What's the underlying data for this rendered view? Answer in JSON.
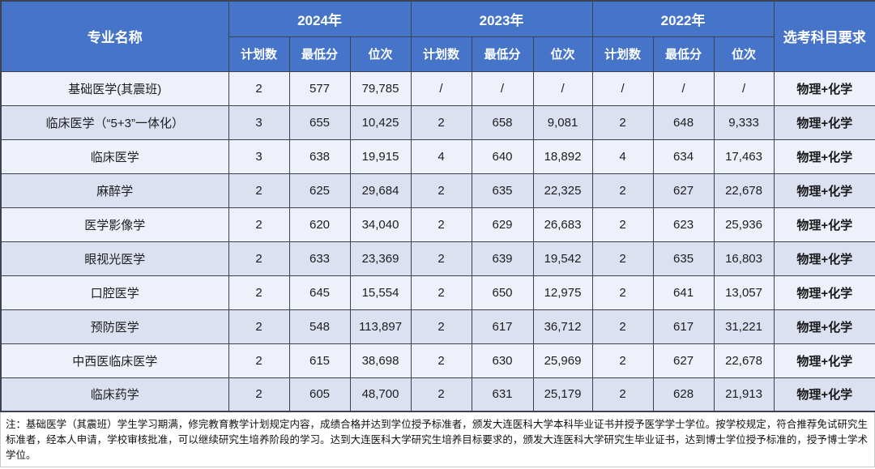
{
  "table": {
    "header": {
      "major_col": "专业名称",
      "year_groups": [
        {
          "label": "2024年"
        },
        {
          "label": "2023年"
        },
        {
          "label": "2022年"
        }
      ],
      "sub_cols": [
        "计划数",
        "最低分",
        "位次"
      ],
      "subject_col": "选考科目要求"
    },
    "rows": [
      {
        "major": "基础医学(其震班)",
        "y2024": [
          "2",
          "577",
          "79,785"
        ],
        "y2023": [
          "/",
          "/",
          "/"
        ],
        "y2022": [
          "/",
          "/",
          "/"
        ],
        "subjects": "物理+化学"
      },
      {
        "major": "临床医学（“5+3”一体化）",
        "y2024": [
          "3",
          "655",
          "10,425"
        ],
        "y2023": [
          "2",
          "658",
          "9,081"
        ],
        "y2022": [
          "2",
          "648",
          "9,333"
        ],
        "subjects": "物理+化学"
      },
      {
        "major": "临床医学",
        "y2024": [
          "3",
          "638",
          "19,915"
        ],
        "y2023": [
          "4",
          "640",
          "18,892"
        ],
        "y2022": [
          "4",
          "634",
          "17,463"
        ],
        "subjects": "物理+化学"
      },
      {
        "major": "麻醉学",
        "y2024": [
          "2",
          "625",
          "29,684"
        ],
        "y2023": [
          "2",
          "635",
          "22,325"
        ],
        "y2022": [
          "2",
          "627",
          "22,678"
        ],
        "subjects": "物理+化学"
      },
      {
        "major": "医学影像学",
        "y2024": [
          "2",
          "620",
          "34,040"
        ],
        "y2023": [
          "2",
          "629",
          "26,683"
        ],
        "y2022": [
          "2",
          "623",
          "25,936"
        ],
        "subjects": "物理+化学"
      },
      {
        "major": "眼视光医学",
        "y2024": [
          "2",
          "633",
          "23,369"
        ],
        "y2023": [
          "2",
          "639",
          "19,542"
        ],
        "y2022": [
          "2",
          "635",
          "16,803"
        ],
        "subjects": "物理+化学"
      },
      {
        "major": "口腔医学",
        "y2024": [
          "2",
          "645",
          "15,554"
        ],
        "y2023": [
          "2",
          "650",
          "12,975"
        ],
        "y2022": [
          "2",
          "641",
          "13,057"
        ],
        "subjects": "物理+化学"
      },
      {
        "major": "预防医学",
        "y2024": [
          "2",
          "548",
          "113,897"
        ],
        "y2023": [
          "2",
          "617",
          "36,712"
        ],
        "y2022": [
          "2",
          "617",
          "31,221"
        ],
        "subjects": "物理+化学"
      },
      {
        "major": "中西医临床医学",
        "y2024": [
          "2",
          "615",
          "38,698"
        ],
        "y2023": [
          "2",
          "630",
          "25,969"
        ],
        "y2022": [
          "2",
          "627",
          "22,678"
        ],
        "subjects": "物理+化学"
      },
      {
        "major": "临床药学",
        "y2024": [
          "2",
          "605",
          "48,700"
        ],
        "y2023": [
          "2",
          "631",
          "25,179"
        ],
        "y2022": [
          "2",
          "628",
          "21,913"
        ],
        "subjects": "物理+化学"
      }
    ]
  },
  "note": {
    "text": "注：基础医学（其震班）学生学习期满，修完教育教学计划规定内容，成绩合格并达到学位授予标准者，颁发大连医科大学本科毕业证书并授予医学学士学位。按学校规定，符合推荐免试研究生标准者，经本人申请，学校审核批准，可以继续研究生培养阶段的学习。达到大连医科大学研究生培养目标要求的，颁发大连医科大学研究生毕业证书，达到博士学位授予标准的，授予博士学术学位。"
  },
  "colors": {
    "header_bg": "#4674c8",
    "header_text": "#ffffff",
    "row_odd_bg": "#eef1f9",
    "row_even_bg": "#dce1f1",
    "grid_border": "#3b4252",
    "note_border": "#c6cad4"
  }
}
